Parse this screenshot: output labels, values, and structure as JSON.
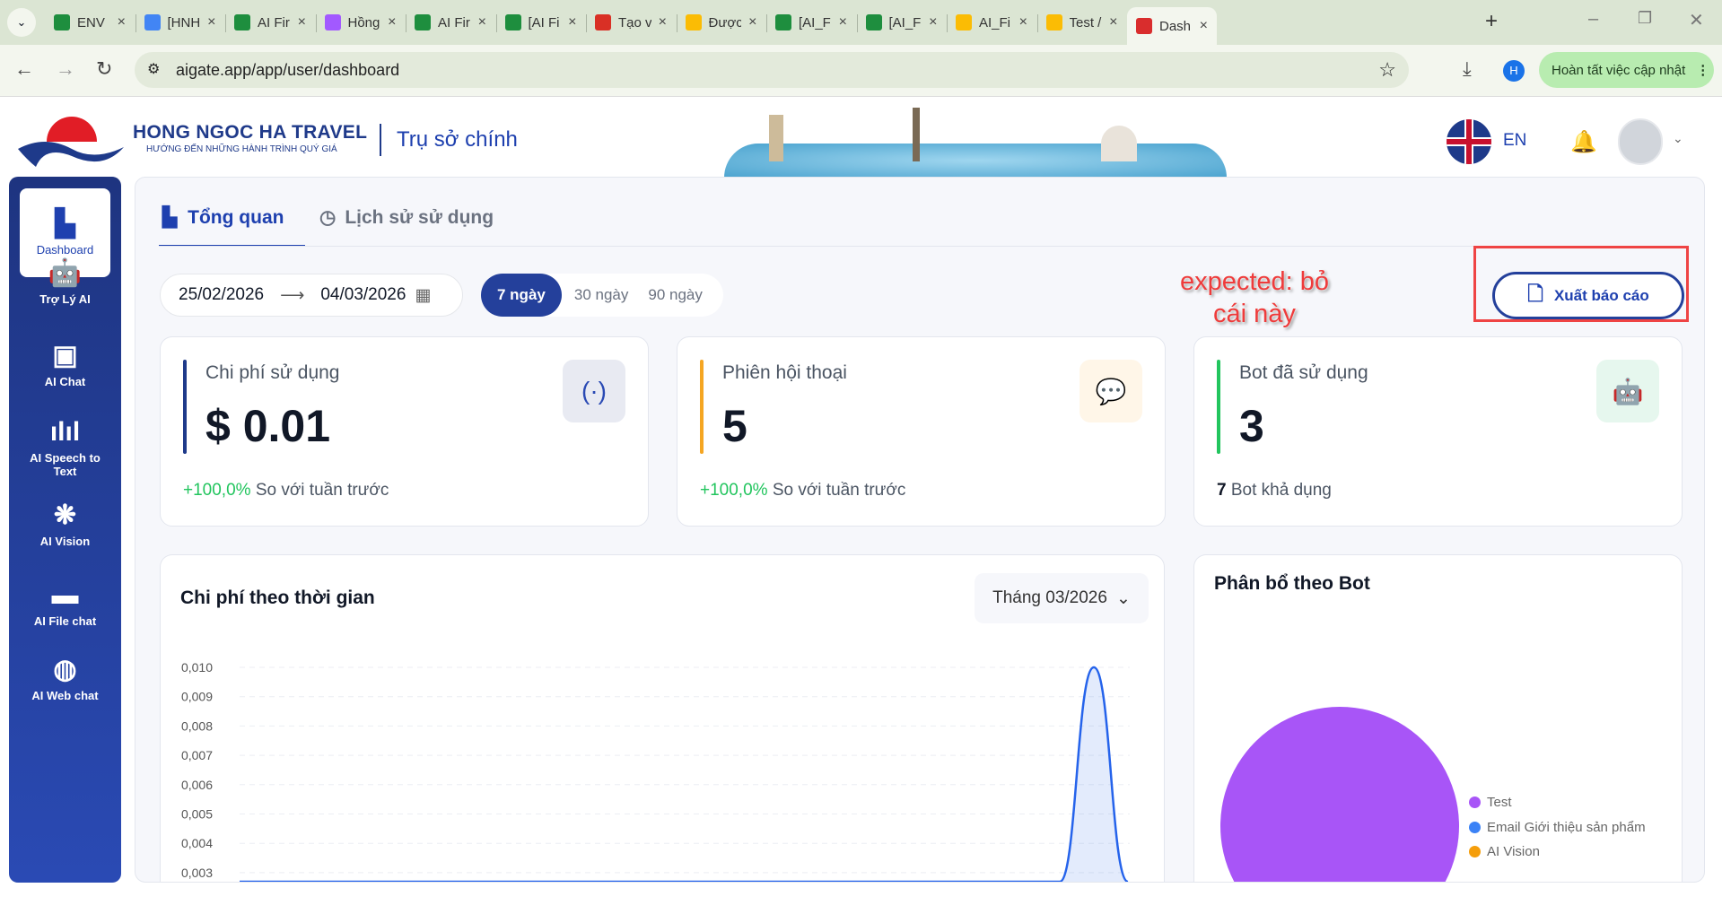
{
  "browser": {
    "tabs": [
      {
        "label": "ENV",
        "color": "#1e8e3e"
      },
      {
        "label": "[HNH",
        "color": "#4285f4"
      },
      {
        "label": "AI Fir",
        "color": "#1e8e3e"
      },
      {
        "label": "Hồng",
        "color": "#a259ff"
      },
      {
        "label": "AI Fir",
        "color": "#1e8e3e"
      },
      {
        "label": "[AI Fi",
        "color": "#1e8e3e"
      },
      {
        "label": "Tạo v",
        "color": "#d93025"
      },
      {
        "label": "Được",
        "color": "#fbbc04"
      },
      {
        "label": "[AI_F",
        "color": "#1e8e3e"
      },
      {
        "label": "[AI_F",
        "color": "#1e8e3e"
      },
      {
        "label": "AI_Fi",
        "color": "#fbbc04"
      },
      {
        "label": "Test /",
        "color": "#fbbc04"
      },
      {
        "label": "Dash",
        "color": "#d92d2d",
        "active": true
      }
    ],
    "url": "aigate.app/app/user/dashboard",
    "profile_initial": "H",
    "update_label": "Hoàn tất việc cập nhật"
  },
  "header": {
    "brand": "HONG NGOC HA TRAVEL",
    "tagline": "HƯỚNG ĐẾN NHỮNG HÀNH TRÌNH QUÝ GIÁ",
    "branch": "Trụ sở chính",
    "language": "EN"
  },
  "sidebar": {
    "items": [
      {
        "label": "Dashboard",
        "icon": "bar-chart-icon",
        "active": true
      },
      {
        "label": "Trợ Lý AI",
        "icon": "robot-icon"
      },
      {
        "label": "AI Chat",
        "icon": "ai-chip-icon"
      },
      {
        "label": "AI Speech to Text",
        "icon": "waveform-icon"
      },
      {
        "label": "AI Vision",
        "icon": "brain-icon"
      },
      {
        "label": "AI File chat",
        "icon": "folder-icon"
      },
      {
        "label": "AI Web chat",
        "icon": "globe-icon"
      }
    ]
  },
  "main": {
    "tabs": [
      {
        "label": "Tổng quan",
        "active": true
      },
      {
        "label": "Lịch sử sử dụng"
      }
    ],
    "date_from": "25/02/2026",
    "date_to": "04/03/2026",
    "ranges": [
      {
        "label": "7 ngày",
        "active": true
      },
      {
        "label": "30 ngày"
      },
      {
        "label": "90 ngày"
      }
    ],
    "export_label": "Xuất báo cáo",
    "annotation": "expected: bỏ cái này",
    "cards": [
      {
        "label": "Chi phí sử dụng",
        "value": "$ 0.01",
        "delta": "+100,0%",
        "foot": "So với tuần trước",
        "accent": "#1e3a8a"
      },
      {
        "label": "Phiên hội thoại",
        "value": "5",
        "delta": "+100,0%",
        "foot": "So với tuần trước",
        "accent": "#f5a623"
      },
      {
        "label": "Bot đã sử dụng",
        "value": "3",
        "delta": "7",
        "foot": "Bot khả dụng",
        "accent": "#22c55e"
      }
    ]
  },
  "chart_data": [
    {
      "type": "area",
      "title": "Chi phí theo thời gian",
      "period_select": "Tháng 03/2026",
      "yticks": [
        "0,010",
        "0,009",
        "0,008",
        "0,007",
        "0,006",
        "0,005",
        "0,004",
        "0,003"
      ],
      "ylim_visible": [
        0.003,
        0.01
      ],
      "grid": true,
      "color": "#2563eb",
      "values": [
        0,
        0,
        0,
        0,
        0,
        0,
        0,
        0,
        0,
        0,
        0,
        0,
        0,
        0,
        0,
        0,
        0,
        0,
        0,
        0,
        0,
        0,
        0,
        0,
        0,
        0.01,
        0
      ]
    },
    {
      "type": "pie",
      "title": "Phân bổ theo Bot",
      "legend_position": "right",
      "slices": [
        {
          "name": "Test",
          "color": "#a855f7",
          "value": 1
        },
        {
          "name": "Email Giới thiệu sản phẩm",
          "color": "#3b82f6",
          "value": 0
        },
        {
          "name": "AI Vision",
          "color": "#f59e0b",
          "value": 0
        }
      ]
    }
  ]
}
